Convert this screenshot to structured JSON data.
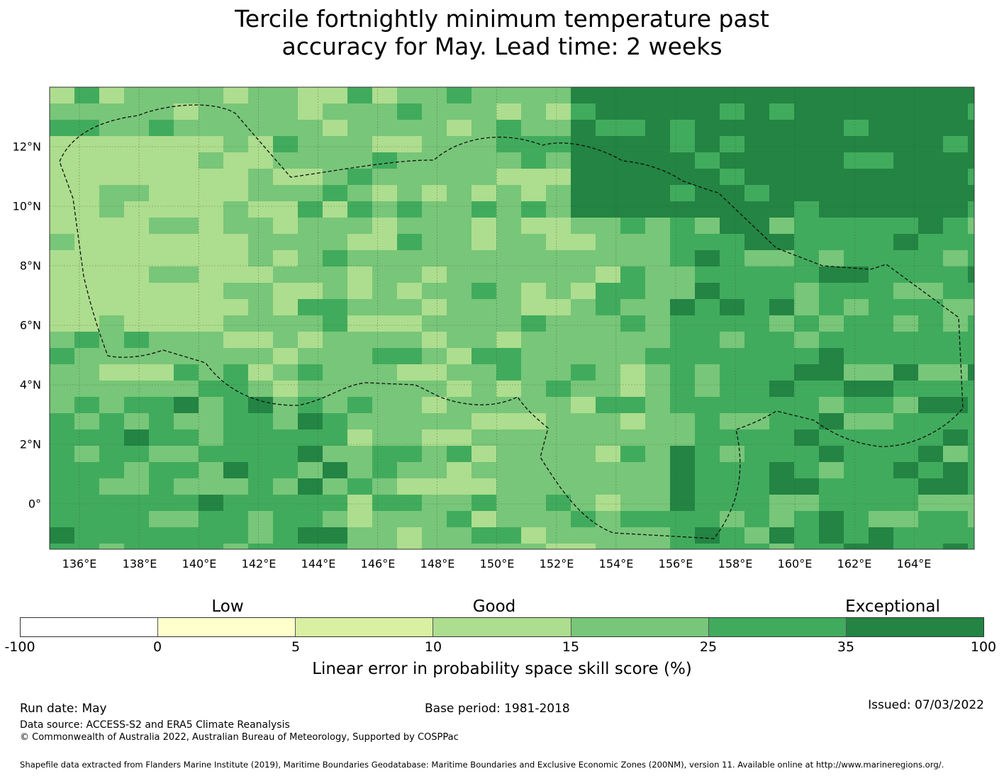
{
  "title_line1": "Tercile fortnightly minimum temperature past",
  "title_line2": "accuracy for May. Lead time: 2 weeks",
  "map": {
    "lon_labels": [
      "136°E",
      "138°E",
      "140°E",
      "142°E",
      "144°E",
      "146°E",
      "148°E",
      "150°E",
      "152°E",
      "154°E",
      "156°E",
      "158°E",
      "160°E",
      "162°E",
      "164°E"
    ],
    "lat_labels": [
      "12°N",
      "10°N",
      "8°N",
      "6°N",
      "4°N",
      "2°N",
      "0°"
    ]
  },
  "colorbar": {
    "categories": [
      "Low",
      "Good",
      "Exceptional"
    ],
    "ticks": [
      "-100",
      "0",
      "5",
      "10",
      "15",
      "25",
      "35",
      "100"
    ],
    "colors": [
      "#ffffff",
      "#ffffcc",
      "#d9f0a3",
      "#addd8e",
      "#78c679",
      "#41ab5d",
      "#238443"
    ],
    "label": "Linear error in probability space skill score (%)"
  },
  "footer": {
    "run_date": "Run date: May",
    "base_period": "Base period: 1981-2018",
    "issued": "Issued: 07/03/2022",
    "data_source": "Data source: ACCESS-S2 and ERA5 Climate Reanalysis",
    "copyright": "© Commonwealth of Australia 2022, Australian Bureau of Meteorology, Supported by COSPPac",
    "shapefile": "Shapefile data extracted from Flanders Marine Institute (2019), Maritime Boundaries Geodatabase: Maritime Boundaries and Exclusive Economic Zones (200NM), version 11. Available online at http://www.marineregions.org/."
  }
}
